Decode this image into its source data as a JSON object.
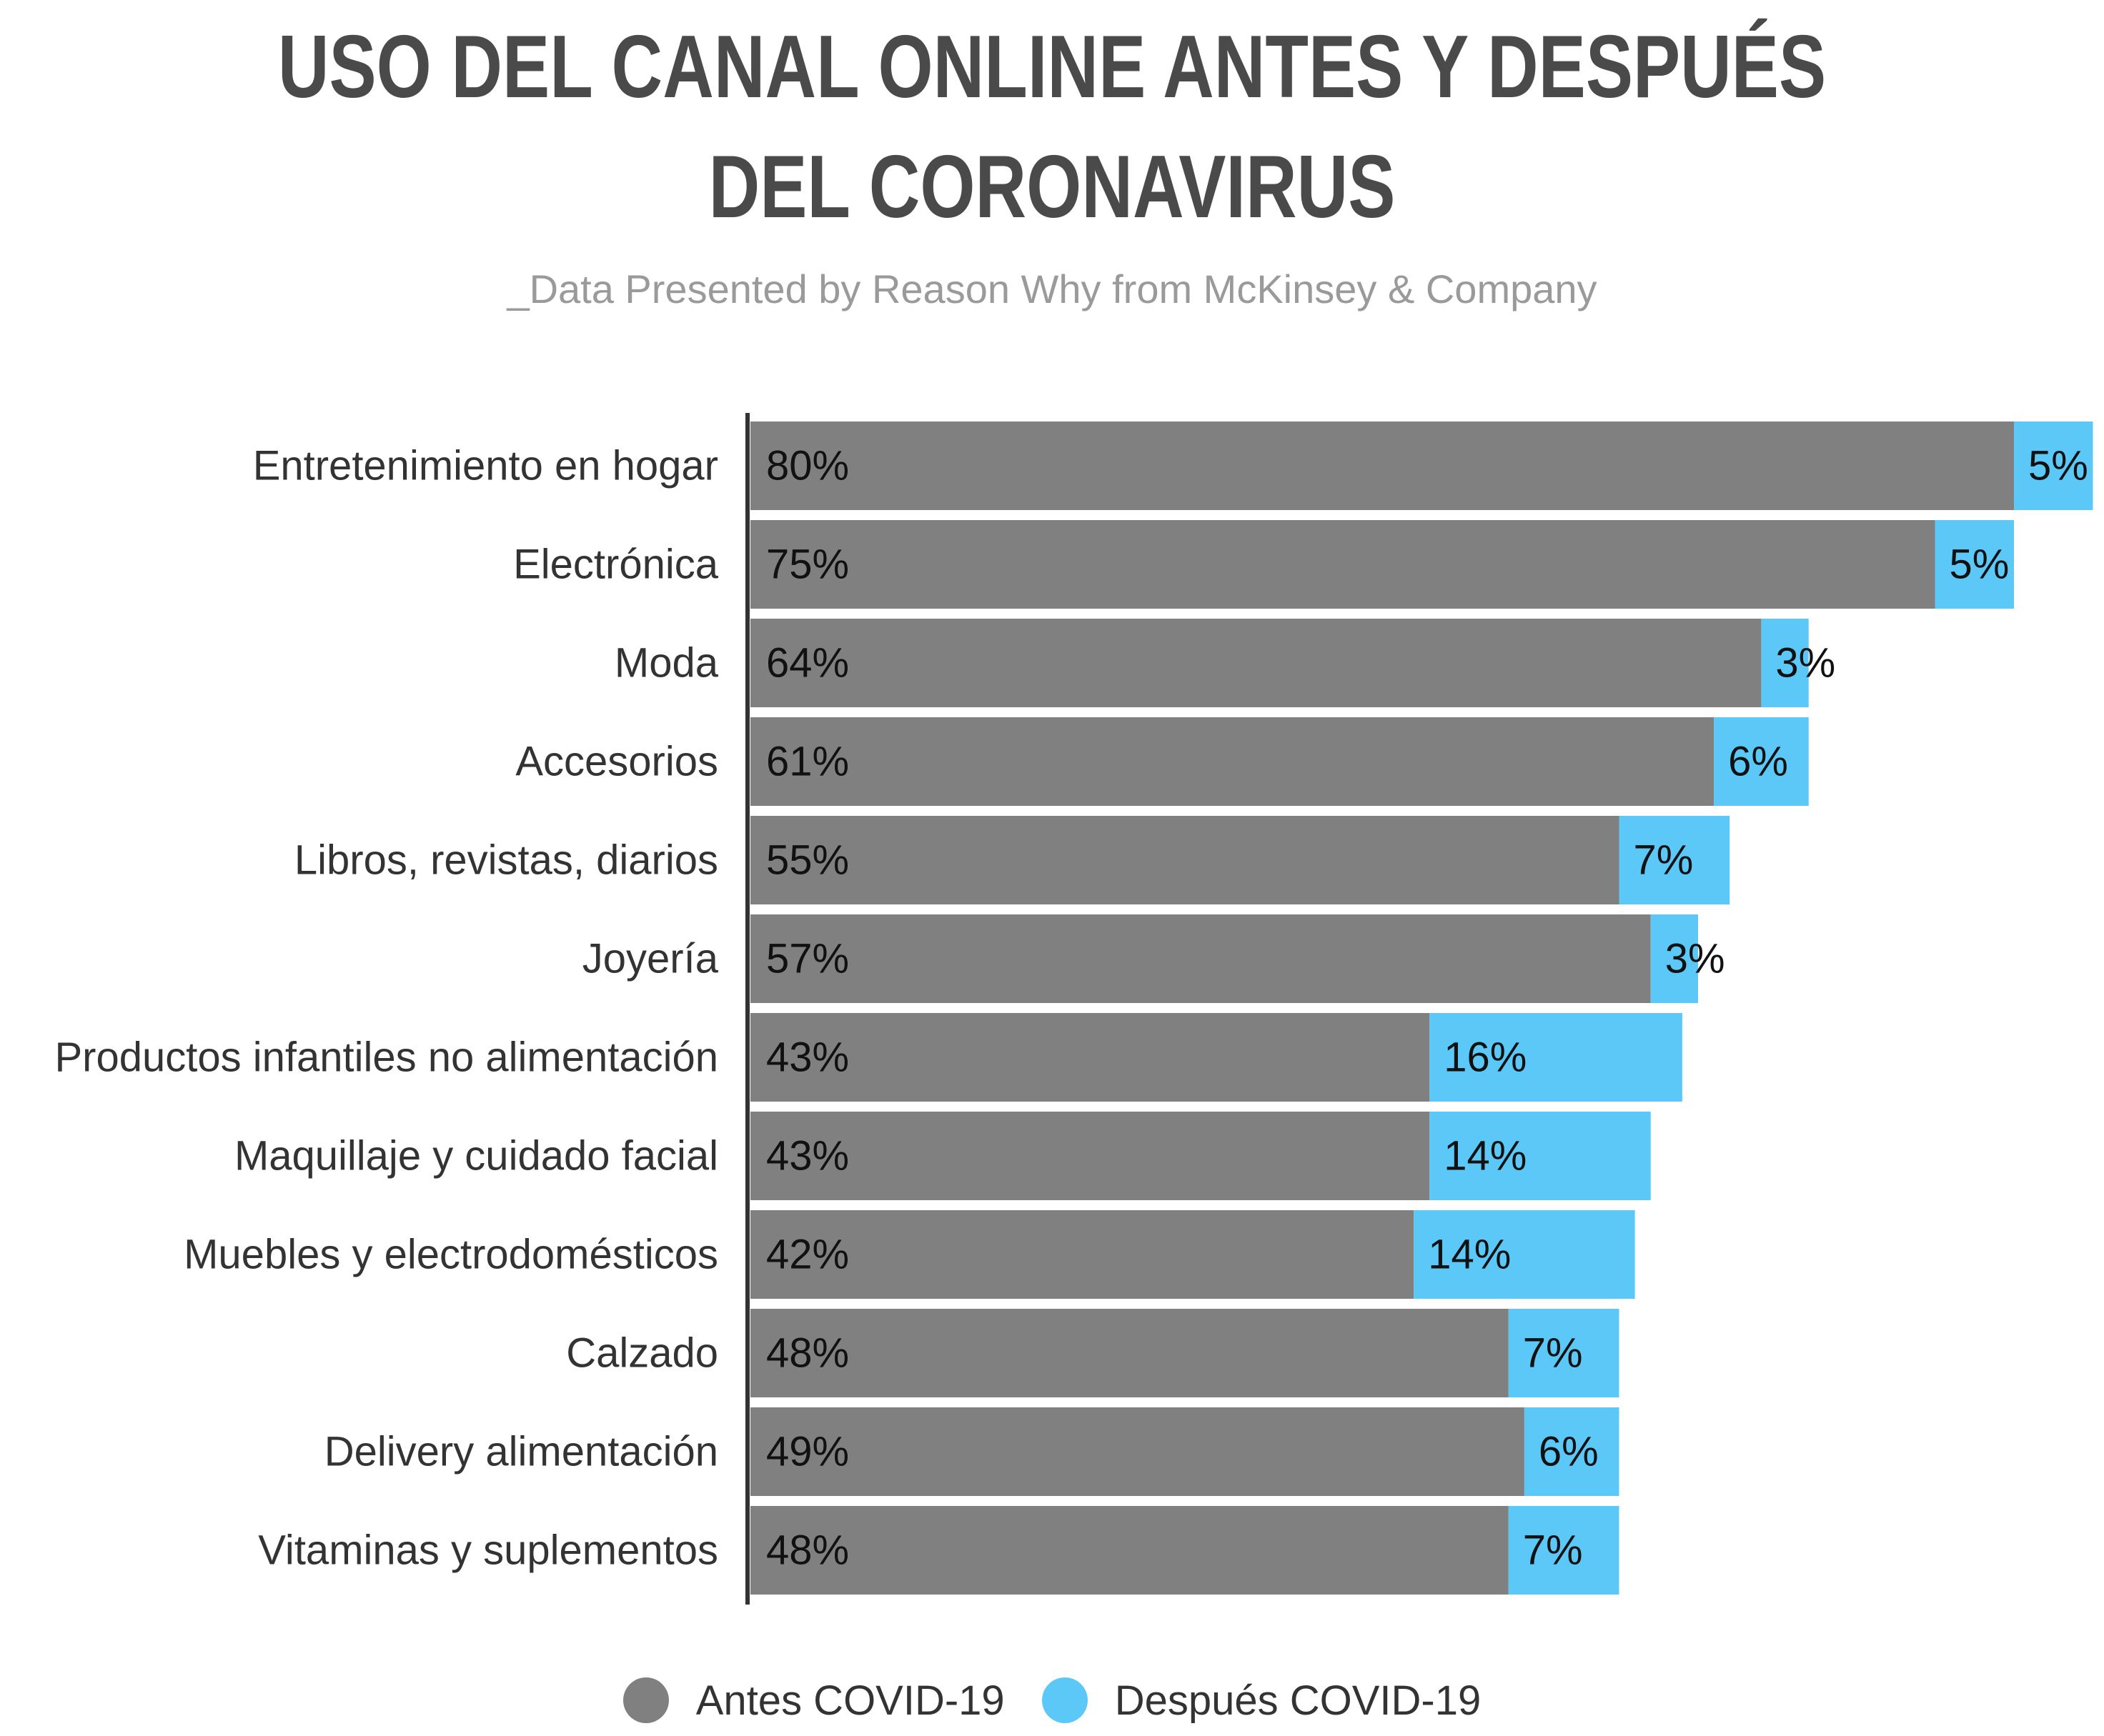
{
  "title": "USO DEL CANAL ONLINE ANTES Y DESPUÉS\nDEL CORONAVIRUS",
  "subtitle": "_Data Presented by Reason Why from McKinsey & Company",
  "colors": {
    "antes": "#808080",
    "despues": "#5bc8f8",
    "axis": "#333333",
    "text": "#333333"
  },
  "chart_data": {
    "type": "bar",
    "orientation": "horizontal",
    "stacked": true,
    "title": "USO DEL CANAL ONLINE ANTES Y DESPUÉS DEL CORONAVIRUS",
    "subtitle": "_Data Presented by Reason Why from McKinsey & Company",
    "categories": [
      "Entretenimiento en hogar",
      "Electrónica",
      "Moda",
      "Accesorios",
      "Libros, revistas, diarios",
      "Joyería",
      "Productos infantiles no alimentación",
      "Maquillaje y cuidado facial",
      "Muebles y electrodomésticos",
      "Calzado",
      "Delivery alimentación",
      "Vitaminas y suplementos"
    ],
    "series": [
      {
        "name": "Antes COVID-19",
        "values": [
          80,
          75,
          64,
          61,
          55,
          57,
          43,
          43,
          42,
          48,
          49,
          48
        ],
        "labels": [
          "80%",
          "75%",
          "64%",
          "61%",
          "55%",
          "57%",
          "43%",
          "43%",
          "42%",
          "48%",
          "49%",
          "48%"
        ]
      },
      {
        "name": "Después COVID-19",
        "values": [
          5,
          5,
          3,
          6,
          7,
          3,
          16,
          14,
          14,
          7,
          6,
          7
        ],
        "labels": [
          "5%",
          "5%",
          "3%",
          "6%",
          "7%",
          "3%",
          "16%",
          "14%",
          "14%",
          "7%",
          "6%",
          "7%"
        ]
      }
    ],
    "xlim": [
      0,
      85
    ],
    "grid": false,
    "legend_position": "bottom"
  }
}
